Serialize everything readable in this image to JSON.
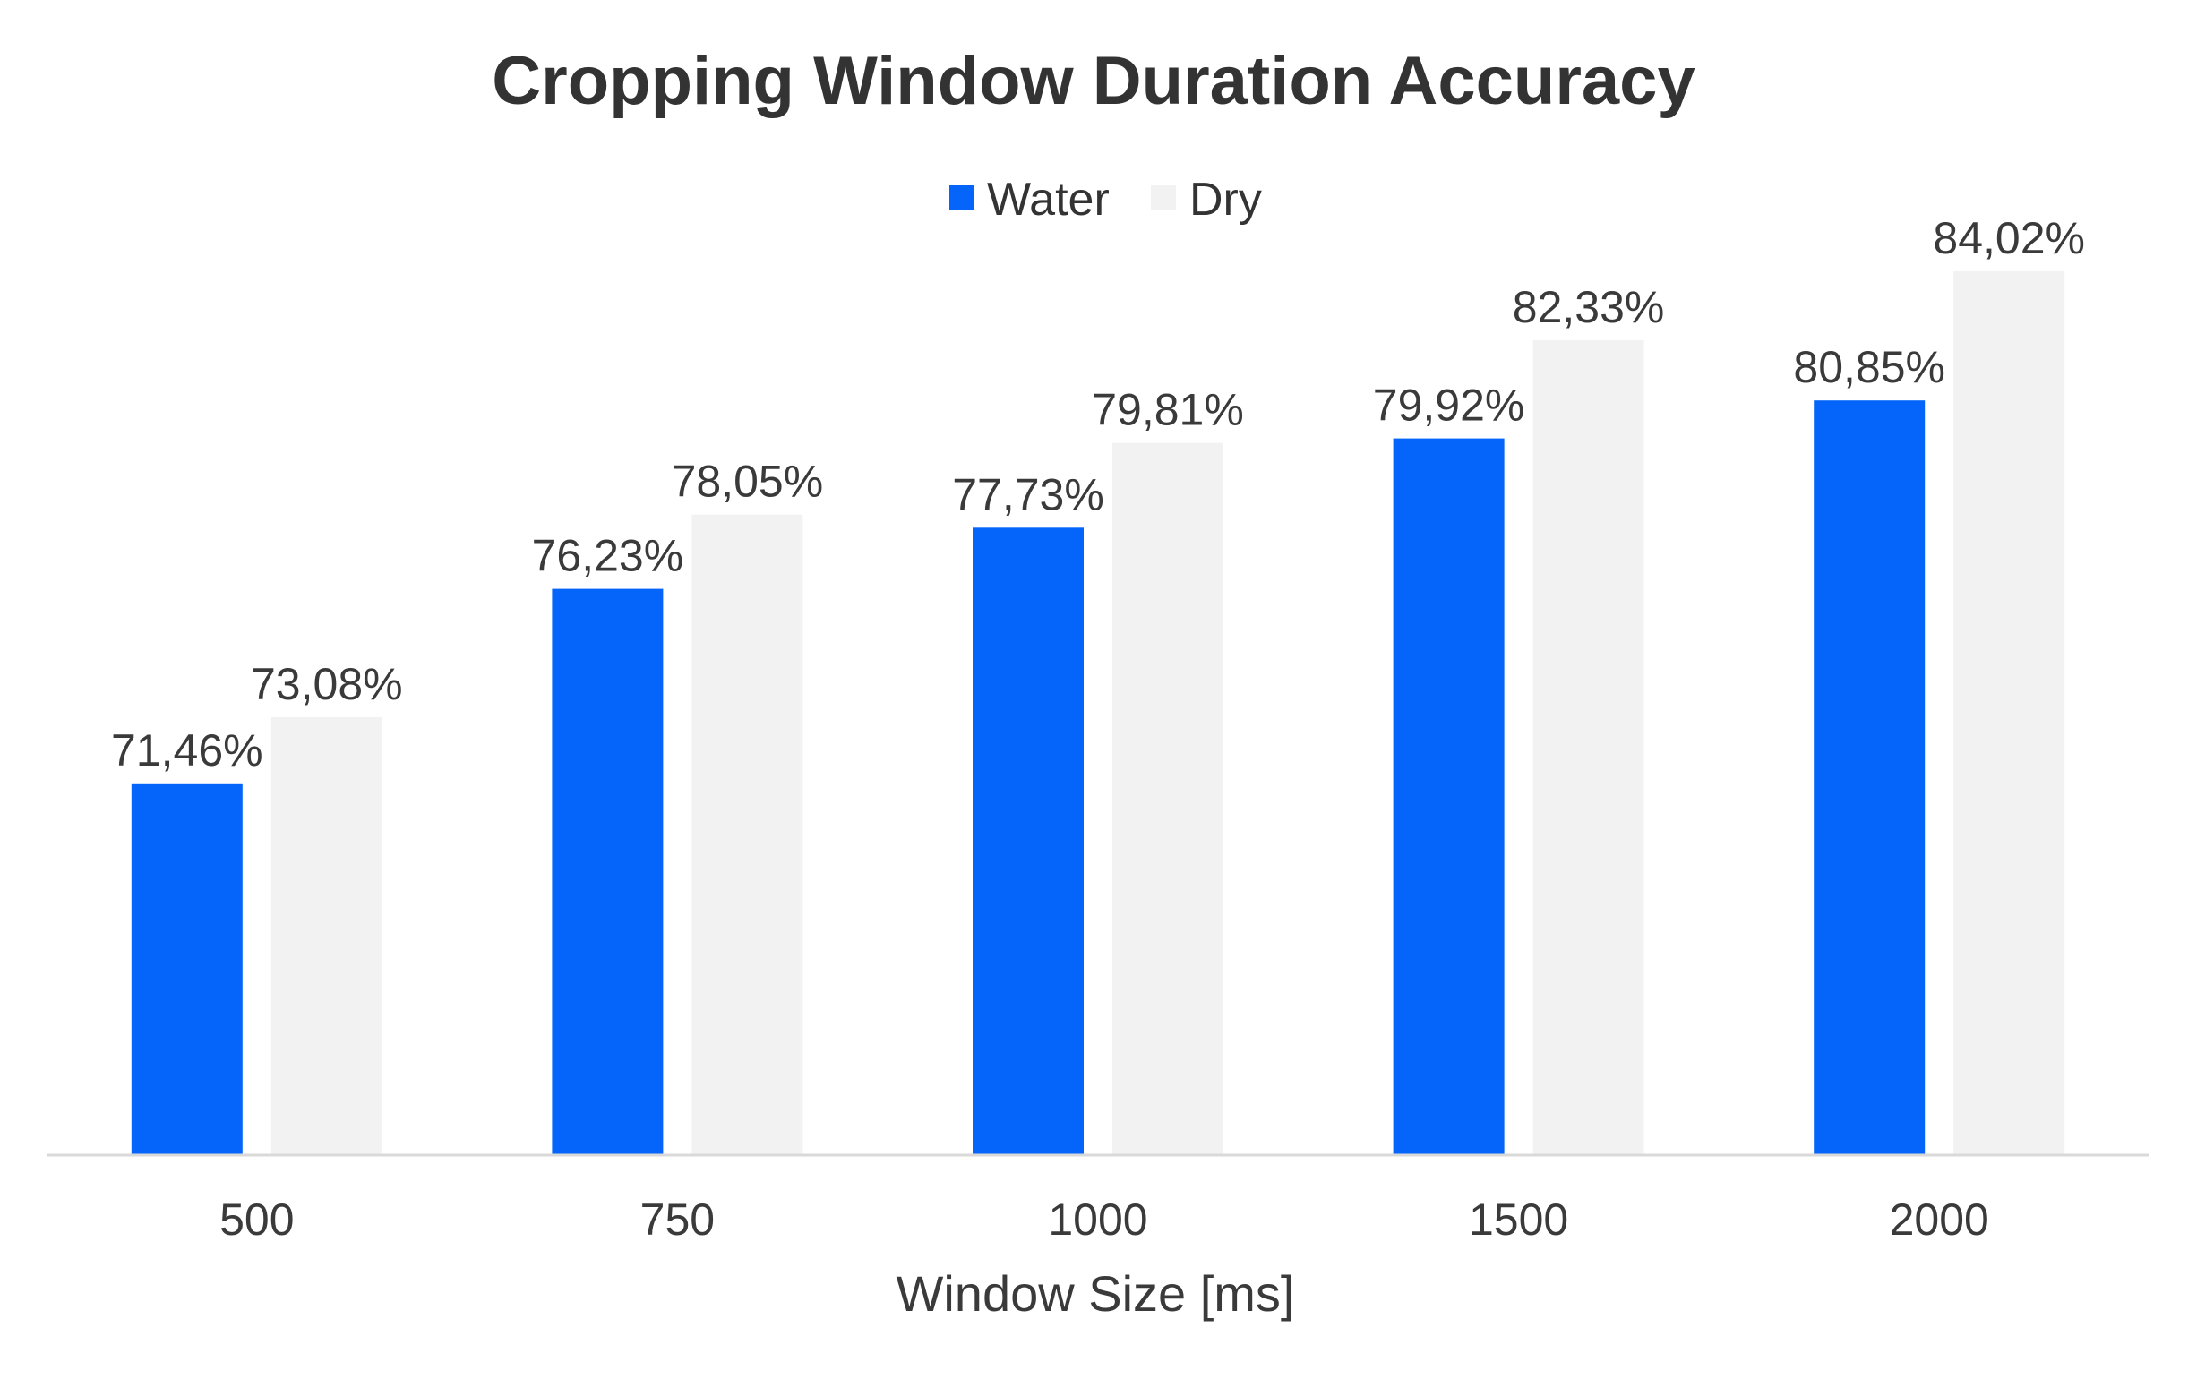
{
  "chart_data": {
    "type": "bar",
    "title": "Cropping Window Duration Accuracy",
    "xlabel": "Window Size [ms]",
    "ylabel": "",
    "categories": [
      "500",
      "750",
      "1000",
      "1500",
      "2000"
    ],
    "series": [
      {
        "name": "Water",
        "color": "#0565FA",
        "values": [
          71.46,
          76.23,
          77.73,
          79.92,
          80.85
        ],
        "labels": [
          "71,46%",
          "76,23%",
          "77,73%",
          "79,92%",
          "80,85%"
        ]
      },
      {
        "name": "Dry",
        "color": "#F2F2F2",
        "values": [
          73.08,
          78.05,
          79.81,
          82.33,
          84.02
        ],
        "labels": [
          "73,08%",
          "78,05%",
          "79,81%",
          "82,33%",
          "84,02%"
        ]
      }
    ],
    "ylim": [
      62.34,
      86.5
    ],
    "legend_position": "top-center",
    "grid": false
  }
}
